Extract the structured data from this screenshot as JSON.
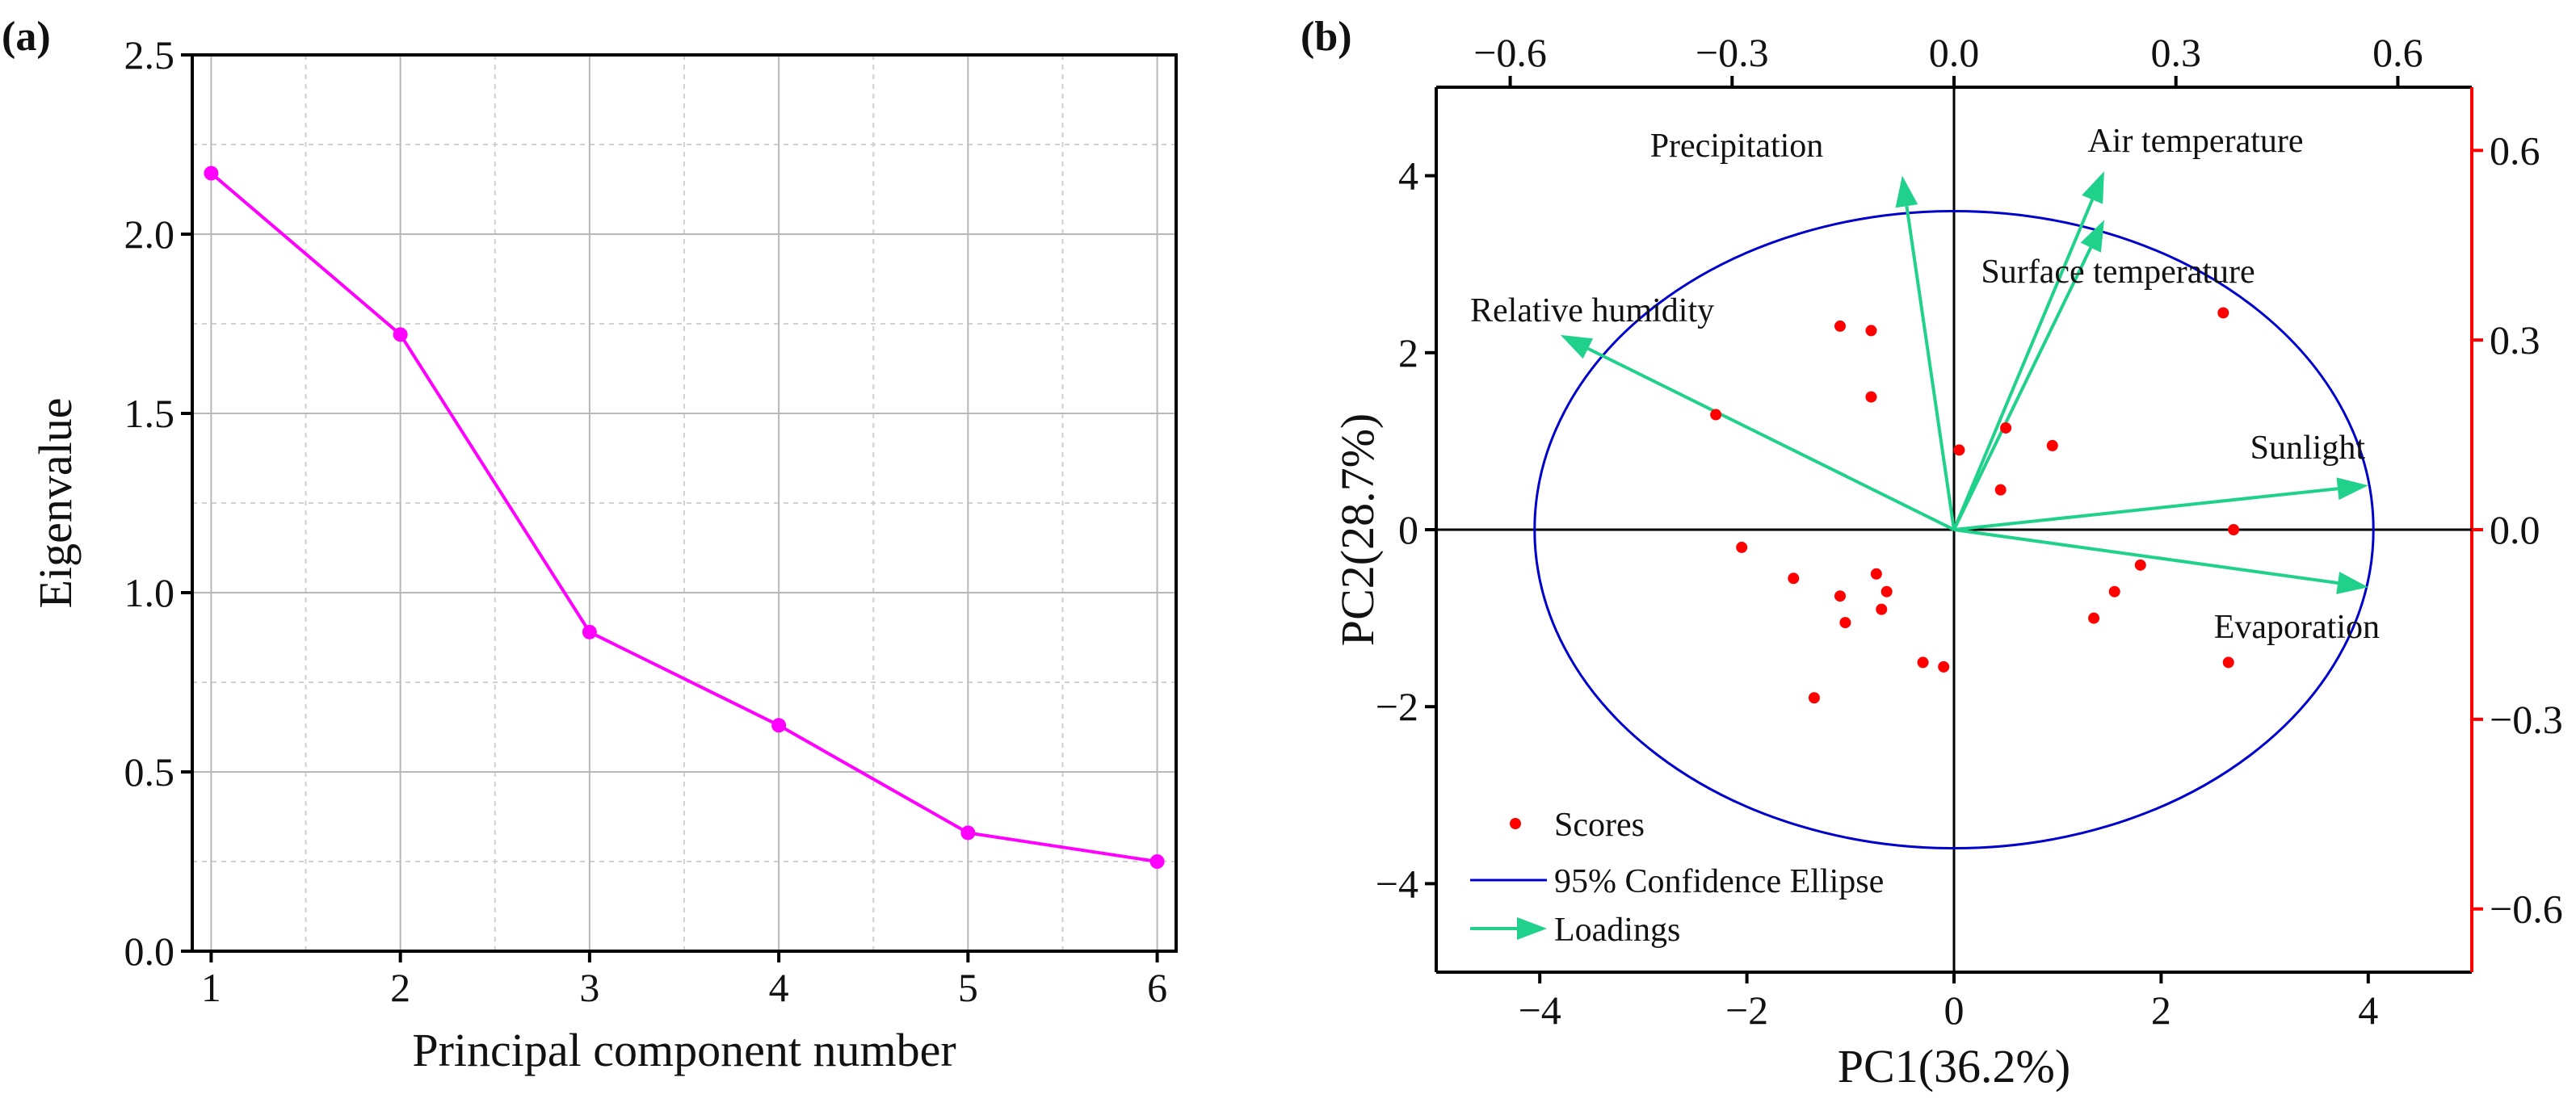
{
  "chart_data": [
    {
      "panel": "(a)",
      "type": "line",
      "xlabel": "Principal component number",
      "ylabel": "Eigenvalue",
      "xlim": [
        0.9,
        6.1
      ],
      "ylim": [
        0,
        2.5
      ],
      "xticks": [
        "1",
        "2",
        "3",
        "4",
        "5",
        "6"
      ],
      "yticks": [
        "0.0",
        "0.5",
        "1.0",
        "1.5",
        "2.0",
        "2.5"
      ],
      "grid": true,
      "series": [
        {
          "name": "Eigenvalue",
          "color": "#ff00ff",
          "x": [
            1,
            2,
            3,
            4,
            5,
            6
          ],
          "values": [
            2.17,
            1.72,
            0.89,
            0.63,
            0.33,
            0.25
          ]
        }
      ]
    },
    {
      "panel": "(b)",
      "type": "scatter",
      "title": "",
      "xlabel": "PC1(36.2%)",
      "ylabel": "PC2(28.7%)",
      "xlim": [
        -5,
        5
      ],
      "ylim": [
        -5,
        5
      ],
      "top_xlim": [
        -0.7,
        0.7
      ],
      "right_ylim": [
        -0.7,
        0.7
      ],
      "xticks": [
        "−4",
        "−2",
        "0",
        "2",
        "4"
      ],
      "yticks": [
        "−4",
        "−2",
        "0",
        "2",
        "4"
      ],
      "top_ticks": [
        "−0.6",
        "−0.3",
        "0.0",
        "0.3",
        "0.6"
      ],
      "right_ticks": [
        "−0.6",
        "−0.3",
        "0.0",
        "0.3",
        "0.6"
      ],
      "colors": {
        "scores": "#ff0000",
        "ellipse": "#0000cc",
        "loadings": "#1fd18b",
        "right_axis": "#ff0000"
      },
      "scores": [
        {
          "x": -2.3,
          "y": 1.3
        },
        {
          "x": -1.1,
          "y": 2.3
        },
        {
          "x": -0.8,
          "y": 2.25
        },
        {
          "x": -0.8,
          "y": 1.5
        },
        {
          "x": 0.05,
          "y": 0.9
        },
        {
          "x": 0.5,
          "y": 1.15
        },
        {
          "x": 0.95,
          "y": 0.95
        },
        {
          "x": 0.45,
          "y": 0.45
        },
        {
          "x": 2.6,
          "y": 2.45
        },
        {
          "x": 2.7,
          "y": 0.0
        },
        {
          "x": -2.05,
          "y": -0.2
        },
        {
          "x": -1.55,
          "y": -0.55
        },
        {
          "x": -1.1,
          "y": -0.75
        },
        {
          "x": -0.75,
          "y": -0.5
        },
        {
          "x": -0.65,
          "y": -0.7
        },
        {
          "x": -0.7,
          "y": -0.9
        },
        {
          "x": -1.05,
          "y": -1.05
        },
        {
          "x": -0.3,
          "y": -1.5
        },
        {
          "x": -0.1,
          "y": -1.55
        },
        {
          "x": -1.35,
          "y": -1.9
        },
        {
          "x": 1.8,
          "y": -0.4
        },
        {
          "x": 1.55,
          "y": -0.7
        },
        {
          "x": 1.35,
          "y": -1.0
        },
        {
          "x": 2.65,
          "y": -1.5
        }
      ],
      "ellipse": {
        "cx": 0,
        "cy": 0,
        "rx": 4.05,
        "ry": 3.6,
        "label": "95% Confidence Ellipse"
      },
      "loadings": [
        {
          "name": "Precipitation",
          "x": -0.5,
          "y": 4.0
        },
        {
          "name": "Air temperature",
          "x": 1.45,
          "y": 4.05
        },
        {
          "name": "Surface temperature",
          "x": 1.45,
          "y": 3.5
        },
        {
          "name": "Relative humidity",
          "x": -3.8,
          "y": 2.2
        },
        {
          "name": "Sunlight",
          "x": 4.0,
          "y": 0.5
        },
        {
          "name": "Evaporation",
          "x": 4.0,
          "y": -0.65
        }
      ],
      "legend": {
        "placement": "bottom-left",
        "items": [
          "Scores",
          "95% Confidence Ellipse",
          "Loadings"
        ]
      }
    }
  ]
}
